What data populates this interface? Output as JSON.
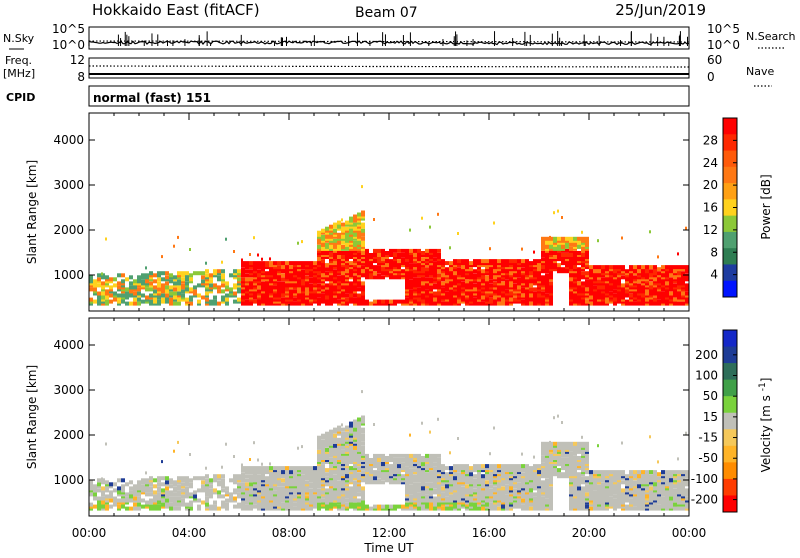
{
  "header": {
    "station": "Hokkaido East (fitACF)",
    "beam": "Beam 07",
    "date": "25/Jun/2019"
  },
  "strips": {
    "nsky_label": "N.Sky",
    "nsky_ticks": [
      "10^5",
      "10^0"
    ],
    "nsearch_label": "N.Search",
    "nsearch_ticks": [
      "10^5",
      "10^0"
    ],
    "freq_label_1": "Freq.",
    "freq_label_2": "[MHz]",
    "freq_ticks": [
      "12",
      "8"
    ],
    "nave_label": "Nave",
    "nave_ticks": [
      "60",
      "0"
    ],
    "cpid_label": "CPID",
    "cpid_text": "normal (fast) 151"
  },
  "colors": {
    "power": [
      "#0014ff",
      "#1e3ca0",
      "#2e7d52",
      "#4fa070",
      "#8cc838",
      "#ffd21e",
      "#ffa014",
      "#ff7814",
      "#ff5a0a",
      "#ff2800",
      "#ff0000"
    ],
    "velocity": [
      "#ff0000",
      "#ff3c00",
      "#ff8c00",
      "#ffb428",
      "#f5c85a",
      "#c0c0b8",
      "#7ad23c",
      "#40a048",
      "#2e6e5a",
      "#1e3c96",
      "#1428c8"
    ]
  },
  "chart_data": [
    {
      "type": "heatmap",
      "xlabel": "Time UT",
      "ylabel": "Slant Range [km]",
      "x_tick_labels": [
        "00:00",
        "04:00",
        "08:00",
        "12:00",
        "16:00",
        "20:00",
        "00:00"
      ],
      "x_hours": [
        0,
        4,
        8,
        12,
        16,
        20,
        24
      ],
      "y_ticks": [
        1000,
        2000,
        3000,
        4000
      ],
      "ylim": [
        200,
        4600
      ],
      "colorbar_label": "Power [dB]",
      "colorbar_ticks": [
        4,
        8,
        12,
        16,
        20,
        24,
        28
      ],
      "colorbar_range": [
        0,
        32
      ]
    },
    {
      "type": "heatmap",
      "xlabel": "Time UT",
      "ylabel": "Slant Range [km]",
      "x_tick_labels": [
        "00:00",
        "04:00",
        "08:00",
        "12:00",
        "16:00",
        "20:00",
        "00:00"
      ],
      "x_hours": [
        0,
        4,
        8,
        12,
        16,
        20,
        24
      ],
      "y_ticks": [
        1000,
        2000,
        3000,
        4000
      ],
      "ylim": [
        200,
        4600
      ],
      "colorbar_label": "Velocity [m s^-1]",
      "colorbar_ticks": [
        "200",
        "100",
        "50",
        "15",
        "-15",
        "-50",
        "-100",
        "-200"
      ]
    }
  ]
}
